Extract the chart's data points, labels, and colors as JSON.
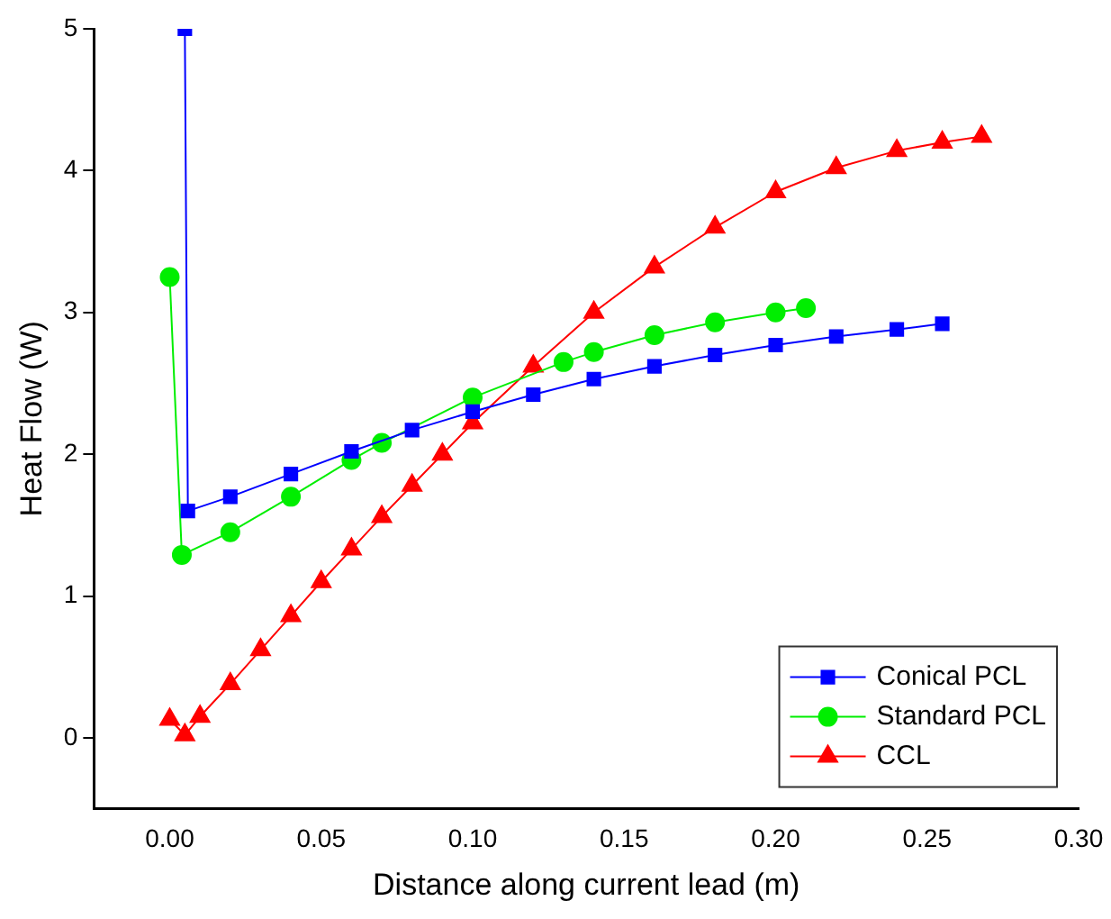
{
  "chart_data": {
    "type": "line",
    "xlabel": "Distance along current lead (m)",
    "ylabel": "Heat Flow (W)",
    "xlim": [
      -0.025,
      0.3
    ],
    "xticks": [
      {
        "value": 0,
        "label": "0.00"
      },
      {
        "value": 0.05,
        "label": "0.05"
      },
      {
        "value": 0.1,
        "label": "0.10"
      },
      {
        "value": 0.15,
        "label": "0.15"
      },
      {
        "value": 0.2,
        "label": "0.20"
      },
      {
        "value": 0.25,
        "label": "0.25"
      },
      {
        "value": 0.3,
        "label": "0.30"
      }
    ],
    "ylim": [
      -0.5,
      5
    ],
    "yticks": [
      0,
      1,
      2,
      3,
      4,
      5
    ],
    "grid": false,
    "legend": "bottom right",
    "series": [
      {
        "name": "Conical PCL",
        "color": "#0000ff",
        "marker": "square",
        "x": [
          0.005,
          0.006,
          0.02,
          0.04,
          0.06,
          0.08,
          0.1,
          0.12,
          0.14,
          0.16,
          0.18,
          0.2,
          0.22,
          0.24,
          0.255
        ],
        "values": [
          5,
          1.6,
          1.7,
          1.86,
          2.02,
          2.17,
          2.3,
          2.42,
          2.53,
          2.62,
          2.7,
          2.77,
          2.83,
          2.88,
          2.92
        ]
      },
      {
        "name": "Standard PCL",
        "color": "#00ee00",
        "marker": "circle",
        "x": [
          0,
          0.004,
          0.02,
          0.04,
          0.06,
          0.07,
          0.1,
          0.13,
          0.14,
          0.16,
          0.18,
          0.2,
          0.21
        ],
        "values": [
          3.25,
          1.29,
          1.45,
          1.7,
          1.96,
          2.08,
          2.4,
          2.65,
          2.72,
          2.84,
          2.93,
          3.0,
          3.03
        ]
      },
      {
        "name": "CCL",
        "color": "#ff0000",
        "marker": "triangle",
        "x": [
          0,
          0.005,
          0.01,
          0.02,
          0.03,
          0.04,
          0.05,
          0.06,
          0.07,
          0.08,
          0.09,
          0.1,
          0.12,
          0.14,
          0.16,
          0.18,
          0.2,
          0.22,
          0.24,
          0.255,
          0.268
        ],
        "values": [
          0.13,
          0.02,
          0.15,
          0.38,
          0.62,
          0.86,
          1.1,
          1.33,
          1.56,
          1.78,
          2.0,
          2.22,
          2.62,
          3.0,
          3.32,
          3.6,
          3.85,
          4.02,
          4.14,
          4.2,
          4.24
        ]
      }
    ]
  }
}
